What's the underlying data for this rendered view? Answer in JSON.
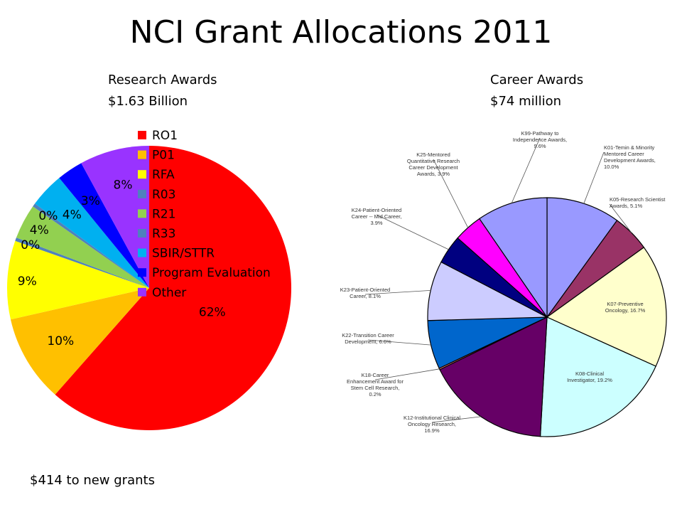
{
  "title": "NCI Grant Allocations 2011",
  "research": {
    "subtitle_line1": "Research Awards",
    "subtitle_line2": "$1.63 Billion"
  },
  "career": {
    "subtitle_line1": "Career Awards",
    "subtitle_line2": "$74 million"
  },
  "footnote": "$414 to new grants",
  "chart_data": [
    {
      "type": "pie",
      "title": "Research Awards $1.63 Billion",
      "categories": [
        "RO1",
        "P01",
        "RFA",
        "R03",
        "R21",
        "R33",
        "SBIR/STTR",
        "Program Evaluation",
        "Other"
      ],
      "values": [
        62,
        10,
        9,
        0,
        4,
        0,
        4,
        3,
        8
      ],
      "data_labels": [
        "62%",
        "10%",
        "9%",
        "0%",
        "4%",
        "0%",
        "4%",
        "3%",
        "8%"
      ],
      "colors": [
        "#ff0000",
        "#ffc000",
        "#ffff00",
        "#4f81bd",
        "#92d050",
        "#4f81bd",
        "#00b0f0",
        "#0000ff",
        "#9933ff"
      ],
      "legend": "overlay-top-right"
    },
    {
      "type": "pie",
      "title": "Career Awards $74 million",
      "categories": [
        "K01-Temin & Minority Mentored Career Development Awards",
        "K05-Research Scientist Awards",
        "K07-Preventive Oncology",
        "K08-Clinical Investigator",
        "K12-Institutional Clinical Oncology Research",
        "K18-Career Enhancement Award for Stem Cell Research",
        "K22-Transition Career Development",
        "K23-Patient-Oriented Career",
        "K24-Patient-Oriented Career -- Mid Career",
        "K25-Mentored Quantitative Research Career Development Awards",
        "K99-Pathway to Independence Awards"
      ],
      "values": [
        10.0,
        5.1,
        16.7,
        19.2,
        16.9,
        0.2,
        6.6,
        8.1,
        3.9,
        3.9,
        9.6
      ],
      "data_labels": [
        [
          "K01-Temin & Minority",
          "Mentored Career",
          "Development Awards,",
          "10.0%"
        ],
        [
          "K05-Research Scientist",
          "Awards, 5.1%"
        ],
        [
          "K07-Preventive",
          "Oncology, 16.7%"
        ],
        [
          "K08-Clinical",
          "Investigator, 19.2%"
        ],
        [
          "K12-Institutional Clinical",
          "Oncology Research,",
          "16.9%"
        ],
        [
          "K18-Career",
          "Enhancement Award for",
          "Stem Cell Research,",
          "0.2%"
        ],
        [
          "K22-Transition Career",
          "Development, 6.6%"
        ],
        [
          "K23-Patient-Oriented",
          "Career, 8.1%"
        ],
        [
          "K24-Patient-Oriented",
          "Career -- Mid Career,",
          "3.9%"
        ],
        [
          "K25-Mentored",
          "Quantitative Research",
          "Career Development",
          "Awards, 3.9%"
        ],
        [
          "K99-Pathway to",
          "Independence Awards,",
          "9.6%"
        ]
      ],
      "colors": [
        "#9999ff",
        "#993366",
        "#ffffcc",
        "#ccffff",
        "#660066",
        "#ff8080",
        "#0066cc",
        "#ccccff",
        "#000080",
        "#ff00ff",
        "#9999ff"
      ]
    }
  ]
}
